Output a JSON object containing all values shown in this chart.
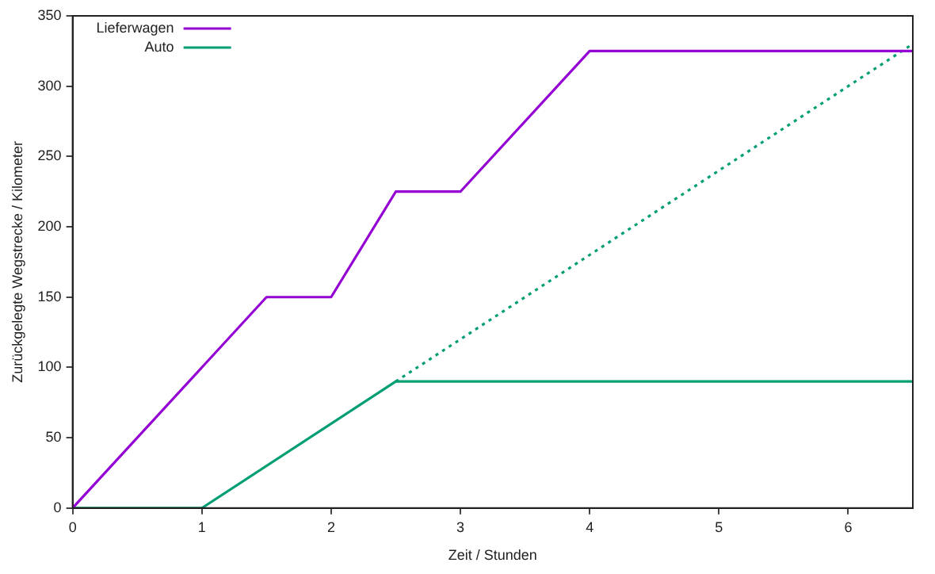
{
  "chart_data": {
    "type": "line",
    "xlabel": "Zeit / Stunden",
    "ylabel": "Zurückgelegte Wegstrecke / Kilometer",
    "xlim": [
      0,
      6.5
    ],
    "xticks": [
      0,
      1,
      2,
      3,
      4,
      5,
      6
    ],
    "ylim": [
      0,
      350
    ],
    "yticks": [
      0,
      50,
      100,
      150,
      200,
      250,
      300,
      350
    ],
    "grid": false,
    "legend": "top left",
    "marker": "none",
    "series": [
      {
        "name": "Lieferwagen",
        "color": "#9400d3",
        "x": [
          0,
          1.5,
          2,
          2.5,
          3,
          4,
          6.5
        ],
        "values": [
          0,
          150,
          150,
          225,
          225,
          325,
          325
        ],
        "line_style": "solid"
      },
      {
        "name": "Auto",
        "color": "#009e73",
        "x": [
          0,
          1,
          2.5,
          6.5
        ],
        "values": [
          0,
          0,
          90,
          90
        ],
        "line_style": "solid"
      },
      {
        "color": "#009e73",
        "x": [
          2.5,
          6.5
        ],
        "values": [
          90,
          330
        ],
        "line_style": "dotted"
      }
    ]
  }
}
